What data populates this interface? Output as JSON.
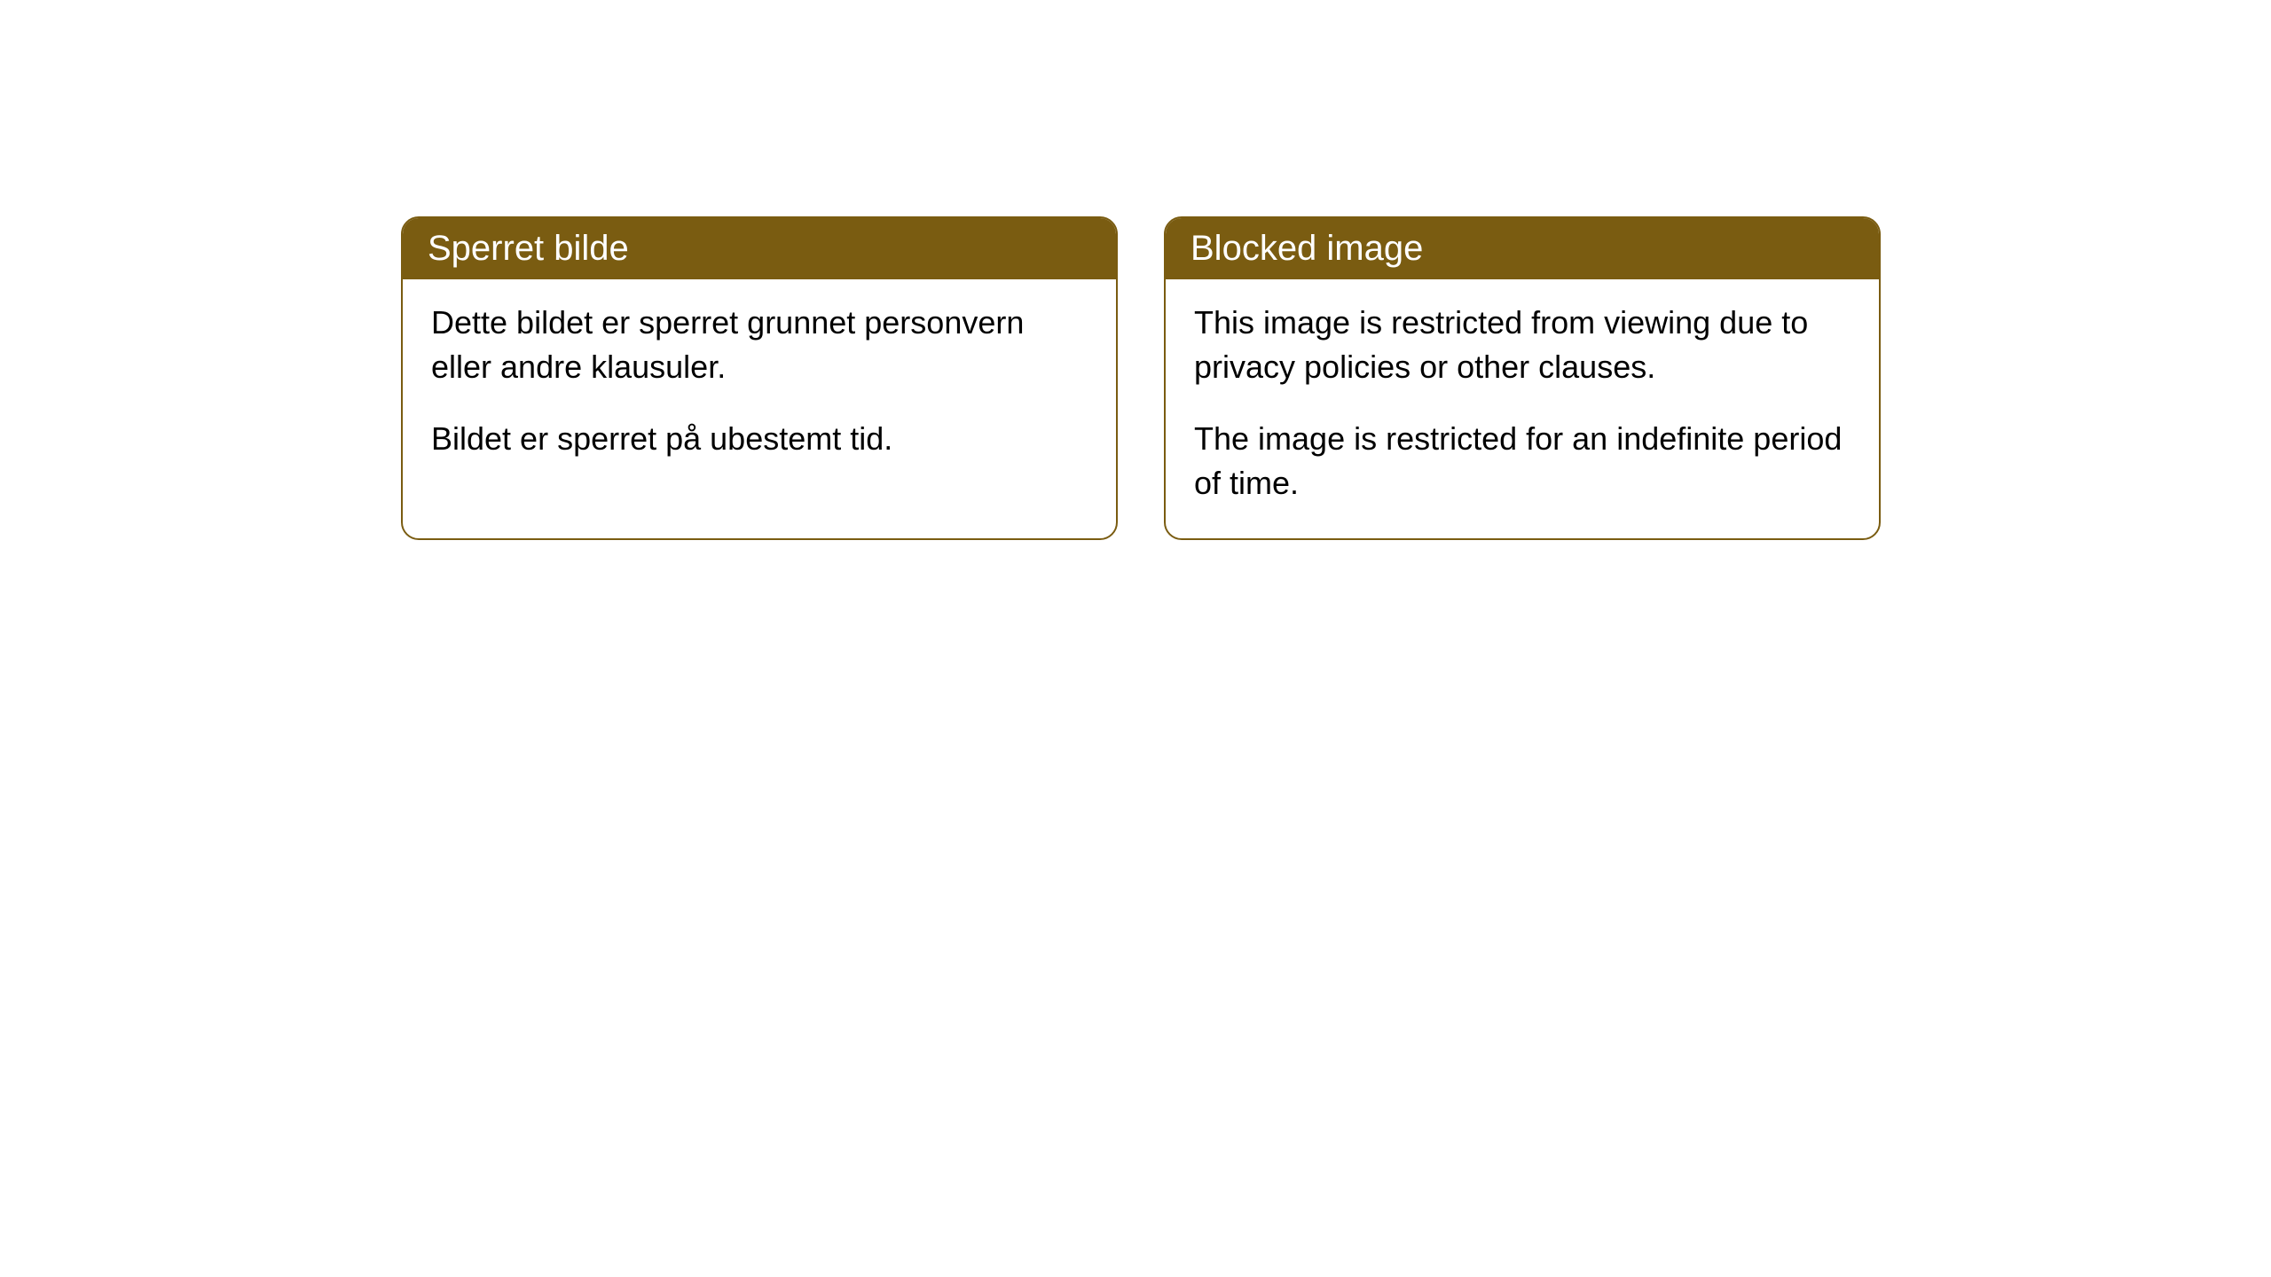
{
  "cards": [
    {
      "title": "Sperret bilde",
      "paragraph1": "Dette bildet er sperret grunnet personvern eller andre klausuler.",
      "paragraph2": "Bildet er sperret på ubestemt tid."
    },
    {
      "title": "Blocked image",
      "paragraph1": "This image is restricted from viewing due to privacy policies or other clauses.",
      "paragraph2": "The image is restricted for an indefinite period of time."
    }
  ],
  "style": {
    "header_background": "#7a5c11",
    "header_text_color": "#ffffff",
    "border_color": "#7a5c11",
    "body_background": "#ffffff",
    "body_text_color": "#000000",
    "border_radius": 20,
    "title_fontsize": 40,
    "body_fontsize": 36
  }
}
